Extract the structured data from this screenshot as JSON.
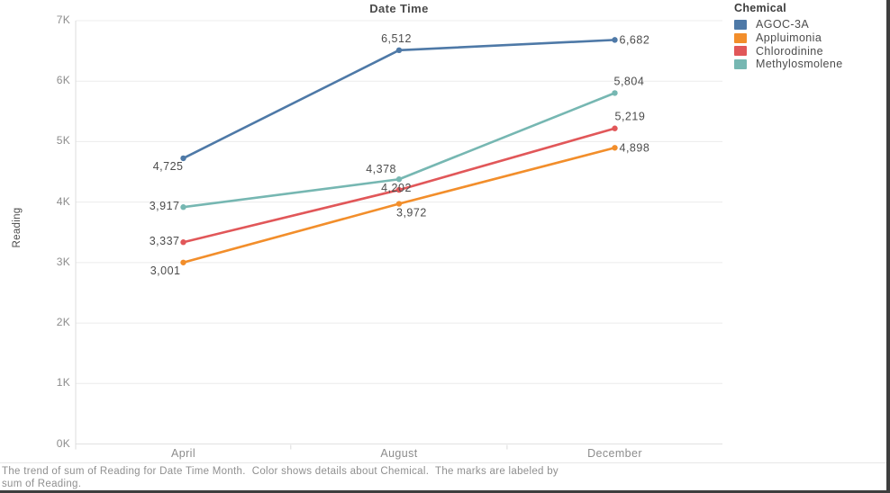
{
  "window": {
    "background": "#ffffff",
    "border_color": "#3e3e3e"
  },
  "chart_data": {
    "type": "line",
    "title": "Date Time",
    "xlabel": "",
    "ylabel": "Reading",
    "categories": [
      "April",
      "August",
      "December"
    ],
    "series": [
      {
        "name": "AGOC-3A",
        "color": "#4E79A7",
        "values": [
          4725,
          6512,
          6682
        ]
      },
      {
        "name": "Appluimonia",
        "color": "#F28E2B",
        "values": [
          3001,
          3972,
          4898
        ]
      },
      {
        "name": "Chlorodinine",
        "color": "#E15759",
        "values": [
          3337,
          4202,
          5219
        ]
      },
      {
        "name": "Methylosmolene",
        "color": "#76B7B2",
        "values": [
          3917,
          4378,
          5804
        ]
      }
    ],
    "ylim": [
      0,
      7000
    ],
    "y_tick_interval": 1000,
    "y_tick_labels": [
      "0K",
      "1K",
      "2K",
      "3K",
      "4K",
      "5K",
      "6K",
      "7K"
    ],
    "grid": true,
    "marks_labeled": true,
    "legend_title": "Chemical",
    "legend_position": "top-right"
  },
  "caption": {
    "line1": "The trend of sum of Reading for Date Time Month.  Color shows details about Chemical.  The marks are labeled by",
    "line2": "sum of Reading."
  }
}
